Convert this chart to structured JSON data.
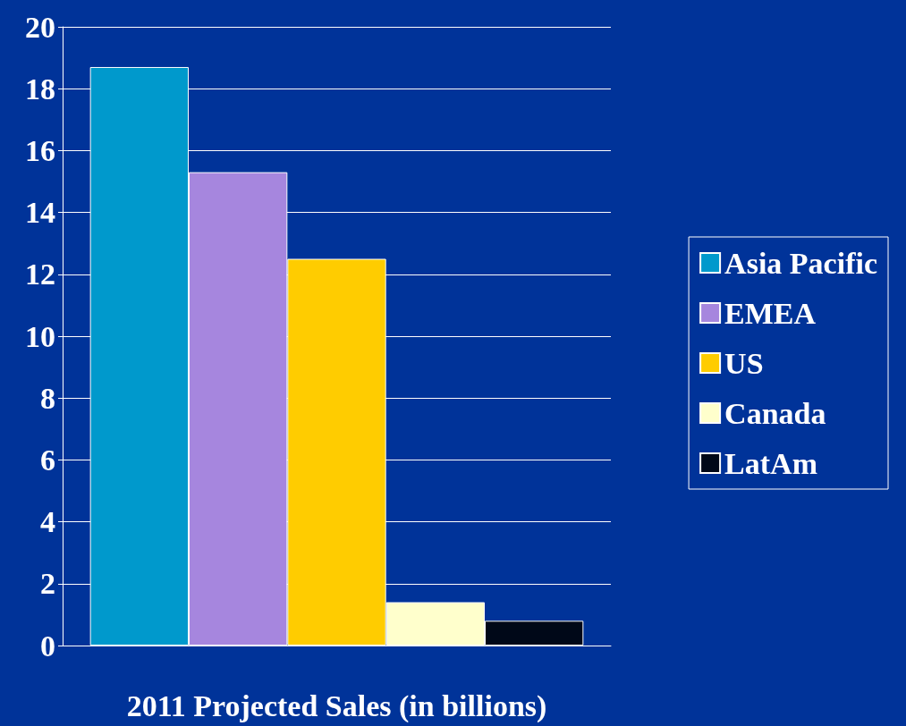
{
  "chart_data": {
    "type": "bar",
    "xlabel": "2011 Projected Sales (in billions)",
    "categories": [
      null
    ],
    "series": [
      {
        "name": "Asia Pacific",
        "color": "#0099cc",
        "values": [
          18.7
        ]
      },
      {
        "name": "EMEA",
        "color": "#a686de",
        "values": [
          15.3
        ]
      },
      {
        "name": "US",
        "color": "#ffcc00",
        "values": [
          12.5
        ]
      },
      {
        "name": "Canada",
        "color": "#ffffcc",
        "values": [
          1.4
        ]
      },
      {
        "name": "LatAm",
        "color": "#000818",
        "values": [
          0.8
        ]
      }
    ],
    "ylim": [
      0,
      20
    ],
    "yticks": [
      0,
      2,
      4,
      6,
      8,
      10,
      12,
      14,
      16,
      18,
      20
    ],
    "grid": "y",
    "legend": "right"
  }
}
